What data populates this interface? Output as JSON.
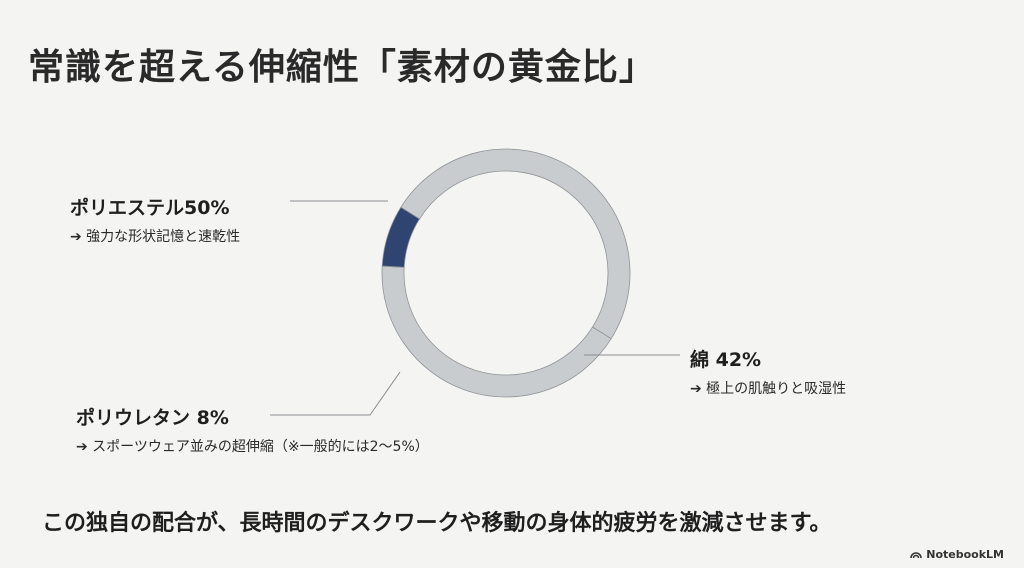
{
  "title": "常識を超える伸縮性「素材の黄金比」",
  "footer": "この独自の配合が、長時間のデスクワークや移動の身体的疲労を激減させます。",
  "brand": "NotebookLM",
  "colors": {
    "ring": "#c9ccce",
    "ring_stroke": "#8f9396",
    "accent": "#2f4470",
    "leader": "#8a8e91"
  },
  "chart_data": {
    "type": "pie",
    "donut": true,
    "slices": [
      {
        "name": "ポリエステル",
        "value": 50,
        "label": "ポリエステル50%",
        "note": "➔ 強力な形状記憶と速乾性",
        "color": "#c9ccce"
      },
      {
        "name": "綿",
        "value": 42,
        "label": "綿 42%",
        "note": "➔ 極上の肌触りと吸湿性",
        "color": "#c9ccce"
      },
      {
        "name": "ポリウレタン",
        "value": 8,
        "label": "ポリウレタン 8%",
        "note": "➔ スポーツウェア並みの超伸縮（※一般的には2～5%）",
        "color": "#2f4470"
      }
    ]
  }
}
